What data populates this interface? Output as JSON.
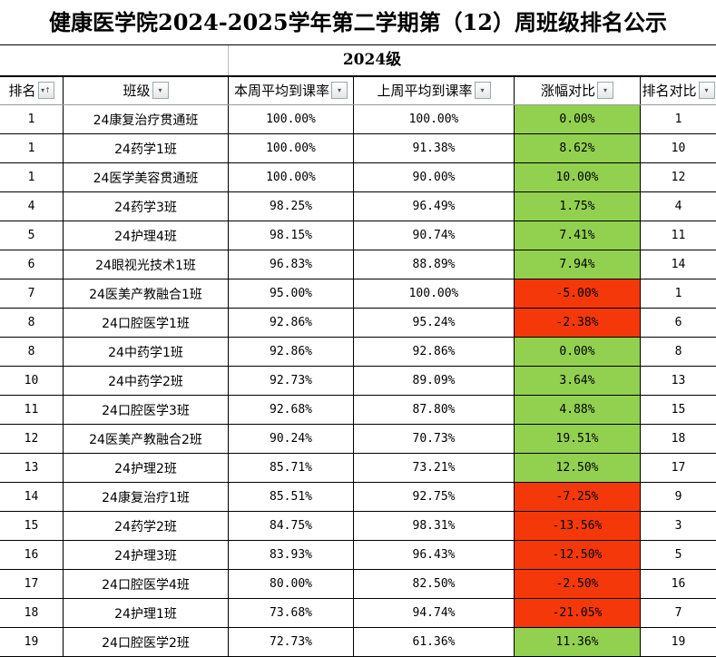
{
  "title": "健康医学院2024-2025学年第二学期第（12）周班级排名公示",
  "grade": "2024级",
  "colors": {
    "up": "#92d050",
    "down": "#f5380a"
  },
  "headers": [
    "排名",
    "班级",
    "本周平均到课率",
    "上周平均到课率",
    "涨幅对比",
    "排名对比"
  ],
  "filter_icons": [
    "sort-ascending-filter-icon",
    "dropdown-filter-icon",
    "dropdown-filter-icon",
    "dropdown-filter-icon",
    "dropdown-filter-icon",
    "dropdown-filter-icon"
  ],
  "rows": [
    [
      "1",
      "24康复治疗贯通班",
      "100.00%",
      "100.00%",
      "0.00%",
      "1"
    ],
    [
      "1",
      "24药学1班",
      "100.00%",
      "91.38%",
      "8.62%",
      "10"
    ],
    [
      "1",
      "24医学美容贯通班",
      "100.00%",
      "90.00%",
      "10.00%",
      "12"
    ],
    [
      "4",
      "24药学3班",
      "98.25%",
      "96.49%",
      "1.75%",
      "4"
    ],
    [
      "5",
      "24护理4班",
      "98.15%",
      "90.74%",
      "7.41%",
      "11"
    ],
    [
      "6",
      "24眼视光技术1班",
      "96.83%",
      "88.89%",
      "7.94%",
      "14"
    ],
    [
      "7",
      "24医美产教融合1班",
      "95.00%",
      "100.00%",
      "-5.00%",
      "1"
    ],
    [
      "8",
      "24口腔医学1班",
      "92.86%",
      "95.24%",
      "-2.38%",
      "6"
    ],
    [
      "8",
      "24中药学1班",
      "92.86%",
      "92.86%",
      "0.00%",
      "8"
    ],
    [
      "10",
      "24中药学2班",
      "92.73%",
      "89.09%",
      "3.64%",
      "13"
    ],
    [
      "11",
      "24口腔医学3班",
      "92.68%",
      "87.80%",
      "4.88%",
      "15"
    ],
    [
      "12",
      "24医美产教融合2班",
      "90.24%",
      "70.73%",
      "19.51%",
      "18"
    ],
    [
      "13",
      "24护理2班",
      "85.71%",
      "73.21%",
      "12.50%",
      "17"
    ],
    [
      "14",
      "24康复治疗1班",
      "85.51%",
      "92.75%",
      "-7.25%",
      "9"
    ],
    [
      "15",
      "24药学2班",
      "84.75%",
      "98.31%",
      "-13.56%",
      "3"
    ],
    [
      "16",
      "24护理3班",
      "83.93%",
      "96.43%",
      "-12.50%",
      "5"
    ],
    [
      "17",
      "24口腔医学4班",
      "80.00%",
      "82.50%",
      "-2.50%",
      "16"
    ],
    [
      "18",
      "24护理1班",
      "73.68%",
      "94.74%",
      "-21.05%",
      "7"
    ],
    [
      "19",
      "24口腔医学2班",
      "72.73%",
      "61.36%",
      "11.36%",
      "19"
    ]
  ]
}
